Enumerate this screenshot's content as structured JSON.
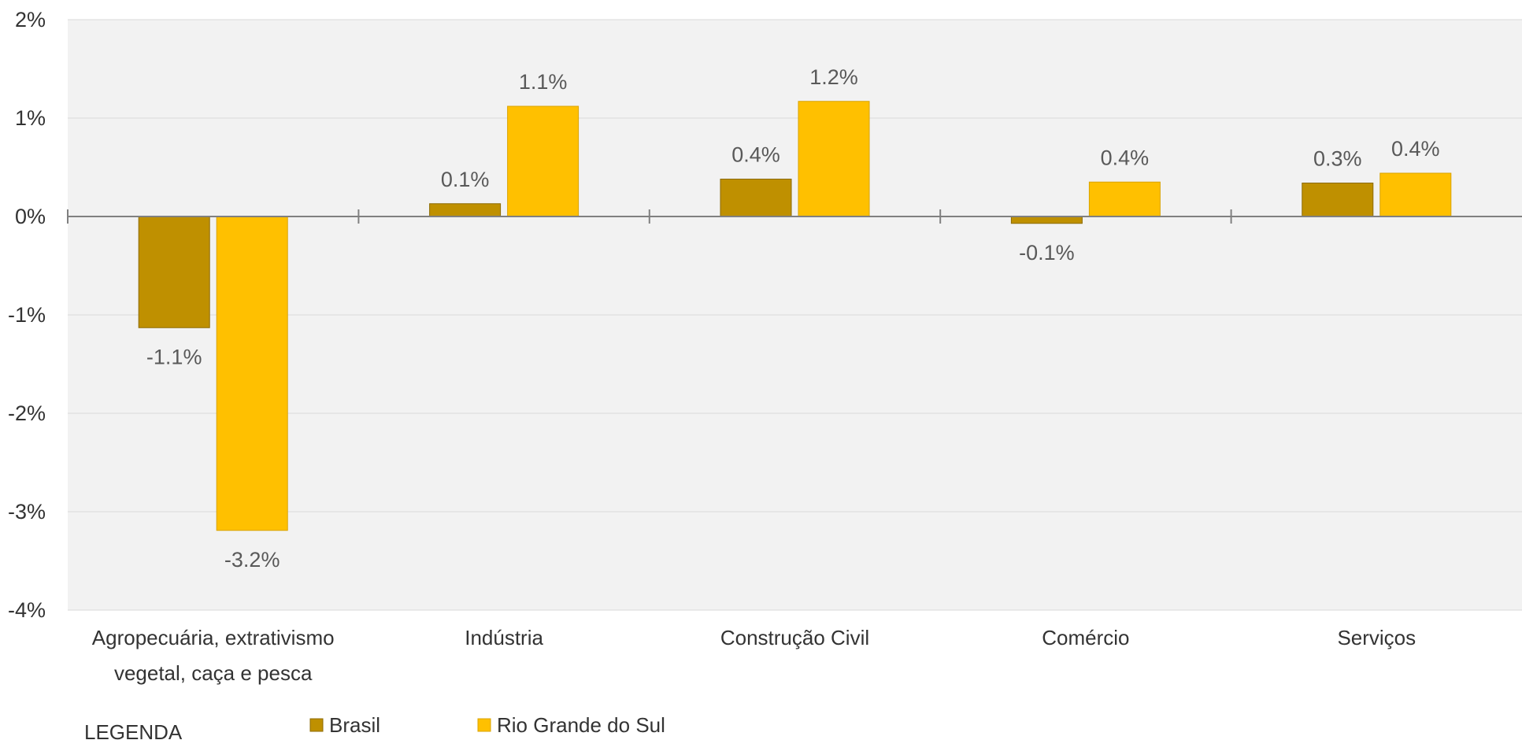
{
  "chart_data": {
    "type": "bar",
    "categories": [
      [
        "Agropecuária, extrativismo",
        "vegetal, caça e pesca"
      ],
      [
        "Indústria"
      ],
      [
        "Construção Civil"
      ],
      [
        "Comércio"
      ],
      [
        "Serviços"
      ]
    ],
    "series": [
      {
        "name": "Brasil",
        "color": "#BF9000",
        "values": [
          -1.13,
          0.13,
          0.38,
          -0.07,
          0.34
        ],
        "labels": [
          "-1.1%",
          "0.1%",
          "0.4%",
          "-0.1%",
          "0.3%"
        ]
      },
      {
        "name": "Rio Grande do Sul",
        "color": "#FFC000",
        "values": [
          -3.19,
          1.12,
          1.17,
          0.35,
          0.44
        ],
        "labels": [
          "-3.2%",
          "1.1%",
          "1.2%",
          "0.4%",
          "0.4%"
        ]
      }
    ],
    "ylim": [
      -4,
      2
    ],
    "yticks": [
      2,
      1,
      0,
      -1,
      -2,
      -3,
      -4
    ],
    "ytick_labels": [
      "2%",
      "1%",
      "0%",
      "-1%",
      "-2%",
      "-3%",
      "-4%"
    ],
    "grid": true,
    "legend_title": "LEGENDA",
    "legend_position": "bottom-left",
    "plot_background": "#F2F2F2",
    "gridline_color": "#D9D9D9",
    "axis_color": "#808080"
  }
}
